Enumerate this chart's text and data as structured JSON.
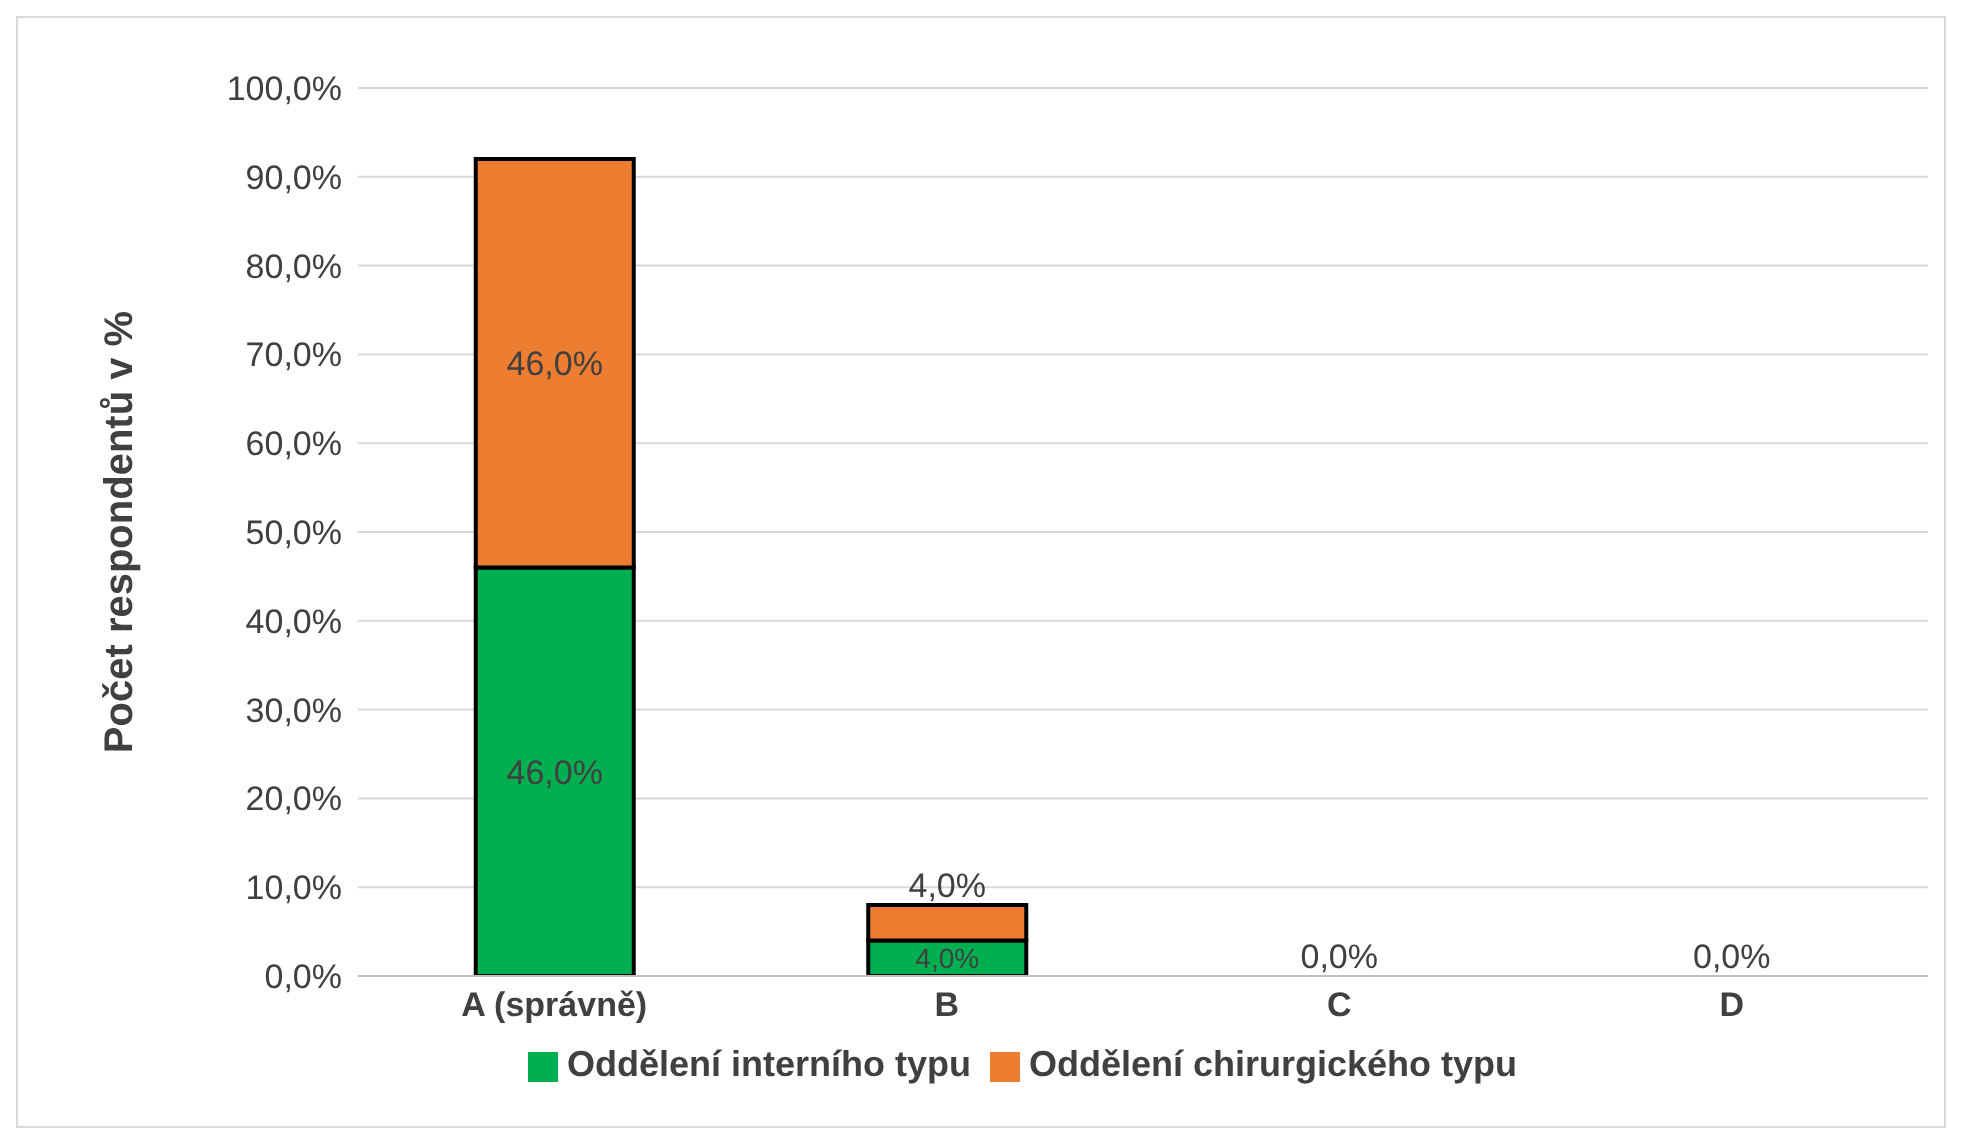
{
  "chart_data": {
    "type": "bar",
    "stacked": true,
    "ylabel": "Počet respondentů v %",
    "categories": [
      "A (správně)",
      "B",
      "C",
      "D"
    ],
    "series": [
      {
        "name": "Oddělení interního typu",
        "color": "#00b050",
        "values": [
          46.0,
          4.0,
          0.0,
          0.0
        ],
        "value_labels": [
          "46,0%",
          "4,0%",
          "0,0%",
          "0,0%"
        ]
      },
      {
        "name": "Oddělení chirurgického typu",
        "color": "#ed7d31",
        "values": [
          46.0,
          4.0,
          0.0,
          0.0
        ],
        "value_labels": [
          "46,0%",
          "4,0%",
          null,
          null
        ]
      }
    ],
    "ylim": [
      0,
      100
    ],
    "yticks": [
      {
        "value": 0,
        "label": "0,0%"
      },
      {
        "value": 10,
        "label": "10,0%"
      },
      {
        "value": 20,
        "label": "20,0%"
      },
      {
        "value": 30,
        "label": "30,0%"
      },
      {
        "value": 40,
        "label": "40,0%"
      },
      {
        "value": 50,
        "label": "50,0%"
      },
      {
        "value": 60,
        "label": "60,0%"
      },
      {
        "value": 70,
        "label": "70,0%"
      },
      {
        "value": 80,
        "label": "80,0%"
      },
      {
        "value": 90,
        "label": "90,0%"
      },
      {
        "value": 100,
        "label": "100,0%"
      }
    ],
    "grid": "y",
    "legend": "bottom"
  }
}
